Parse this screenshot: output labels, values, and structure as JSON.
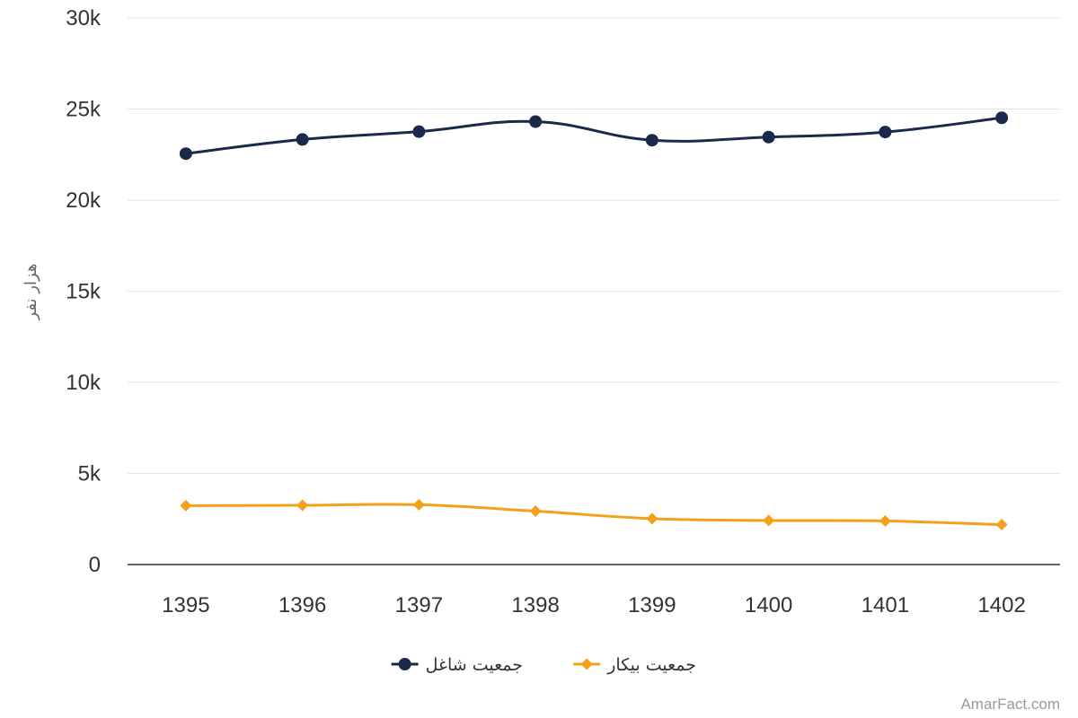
{
  "chart_data": {
    "type": "line",
    "categories": [
      "1395",
      "1396",
      "1397",
      "1398",
      "1399",
      "1400",
      "1401",
      "1402"
    ],
    "series": [
      {
        "name": "جمعیت شاغل",
        "values": [
          22550,
          23330,
          23760,
          24310,
          23290,
          23460,
          23740,
          24520
        ],
        "color": "#1b2a4a",
        "marker": "circle"
      },
      {
        "name": "جمعیت بیکار",
        "values": [
          3230,
          3250,
          3280,
          2930,
          2520,
          2420,
          2390,
          2190
        ],
        "color": "#f5a01a",
        "marker": "diamond"
      }
    ],
    "ylabel": "هزار نفر",
    "ylim": [
      0,
      30000
    ],
    "yticks": [
      "0",
      "5k",
      "10k",
      "15k",
      "20k",
      "25k",
      "30k"
    ],
    "grid": true,
    "legend_position": "bottom-center",
    "credit": "AmarFact.com"
  }
}
